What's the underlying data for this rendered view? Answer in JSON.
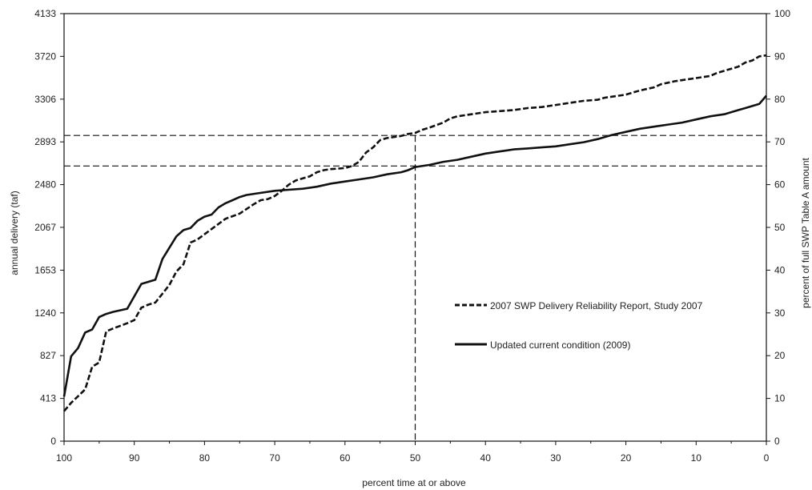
{
  "chart_data": {
    "type": "line",
    "xlabel": "percent time at or above",
    "ylabel": "annual delivery (taf)",
    "ylabel_right": "percent of full SWP Table A amount",
    "x_ticks": [
      "100",
      "90",
      "80",
      "70",
      "60",
      "50",
      "40",
      "30",
      "20",
      "10",
      "0"
    ],
    "y_ticks": [
      "0",
      "413",
      "827",
      "1240",
      "1653",
      "2067",
      "2480",
      "2893",
      "3306",
      "3720",
      "4133"
    ],
    "y2_ticks": [
      "0",
      "10",
      "20",
      "30",
      "40",
      "50",
      "60",
      "70",
      "80",
      "90",
      "100"
    ],
    "xlim": [
      100,
      0
    ],
    "ylim": [
      0,
      4133
    ],
    "y2lim": [
      0,
      100
    ],
    "x_reversed": true,
    "grid": false,
    "legend_position": "lower-right",
    "series": [
      {
        "name": "2007 SWP Delivery Reliability Report, Study 2007",
        "style": "dashed",
        "x": [
          100,
          99,
          97,
          96,
          95,
          94,
          93,
          91,
          90,
          89,
          88,
          87,
          85,
          84,
          83,
          82,
          81,
          80,
          79,
          77,
          75,
          73,
          72,
          71,
          70,
          69,
          68,
          67,
          66,
          65,
          64,
          63,
          62,
          60,
          59,
          58,
          57,
          56,
          55,
          54,
          53,
          52,
          51,
          50,
          49,
          48,
          46,
          45,
          44,
          43,
          41,
          40,
          38,
          36,
          34,
          32,
          30,
          28,
          26,
          24,
          23,
          21,
          20,
          18,
          16,
          15,
          13,
          11,
          10,
          8,
          7,
          5,
          4,
          3,
          2,
          1,
          0
        ],
        "y": [
          290,
          370,
          500,
          720,
          760,
          1060,
          1090,
          1140,
          1170,
          1290,
          1320,
          1340,
          1510,
          1640,
          1710,
          1920,
          1950,
          2000,
          2050,
          2150,
          2200,
          2290,
          2330,
          2340,
          2370,
          2420,
          2480,
          2520,
          2540,
          2560,
          2600,
          2620,
          2630,
          2640,
          2660,
          2700,
          2790,
          2840,
          2910,
          2930,
          2940,
          2950,
          2970,
          2980,
          3010,
          3030,
          3080,
          3120,
          3140,
          3150,
          3170,
          3180,
          3190,
          3200,
          3220,
          3230,
          3250,
          3270,
          3290,
          3300,
          3320,
          3340,
          3350,
          3390,
          3420,
          3450,
          3480,
          3500,
          3510,
          3530,
          3560,
          3600,
          3620,
          3660,
          3680,
          3720,
          3730
        ]
      },
      {
        "name": "Updated current condition (2009)",
        "style": "solid",
        "x": [
          100,
          99,
          98,
          97,
          96,
          95,
          94,
          93,
          91,
          90,
          89,
          88,
          87,
          86,
          85,
          84,
          83,
          82,
          81,
          80,
          79,
          78,
          77,
          76,
          75,
          74,
          72,
          70,
          68,
          66,
          64,
          62,
          60,
          58,
          56,
          54,
          52,
          51,
          50,
          48,
          46,
          44,
          42,
          40,
          38,
          36,
          34,
          32,
          30,
          28,
          26,
          24,
          22,
          20,
          18,
          16,
          14,
          12,
          10,
          8,
          6,
          4,
          3,
          2,
          1,
          0
        ],
        "y": [
          430,
          820,
          900,
          1050,
          1080,
          1200,
          1230,
          1250,
          1280,
          1400,
          1520,
          1540,
          1560,
          1760,
          1870,
          1980,
          2040,
          2060,
          2130,
          2170,
          2190,
          2260,
          2300,
          2330,
          2360,
          2380,
          2400,
          2420,
          2430,
          2440,
          2460,
          2490,
          2510,
          2530,
          2550,
          2580,
          2600,
          2620,
          2650,
          2670,
          2700,
          2720,
          2750,
          2780,
          2800,
          2820,
          2830,
          2840,
          2850,
          2870,
          2890,
          2920,
          2960,
          2990,
          3020,
          3040,
          3060,
          3080,
          3110,
          3140,
          3160,
          3200,
          3220,
          3240,
          3260,
          3340
        ]
      }
    ],
    "reference_lines": {
      "horizontal": [
        2955,
        2660
      ],
      "vertical": [
        50
      ]
    }
  }
}
